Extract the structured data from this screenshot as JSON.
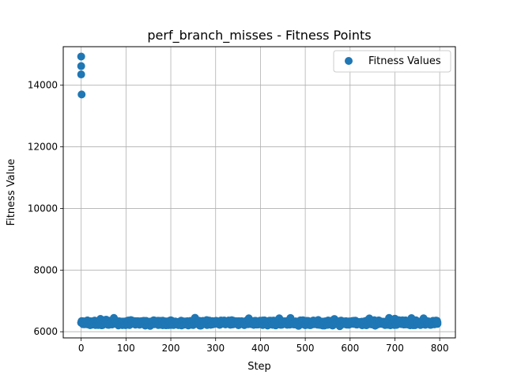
{
  "chart_data": {
    "type": "scatter",
    "title": "perf_branch_misses - Fitness Points",
    "xlabel": "Step",
    "ylabel": "Fitness Value",
    "xlim": [
      -40,
      835
    ],
    "ylim": [
      5800,
      15250
    ],
    "xticks": [
      0,
      100,
      200,
      300,
      400,
      500,
      600,
      700,
      800
    ],
    "yticks": [
      6000,
      8000,
      10000,
      12000,
      14000
    ],
    "grid": true,
    "legend": {
      "placement": "top-right",
      "entries": [
        "Fitness Values"
      ]
    },
    "series": [
      {
        "name": "Fitness Values",
        "color": "#1f77b4",
        "outliers": [
          {
            "x": 0,
            "y": 14930
          },
          {
            "x": 0,
            "y": 14620
          },
          {
            "x": 0,
            "y": 14350
          },
          {
            "x": 1,
            "y": 13700
          }
        ],
        "bulk": {
          "x_start": 0,
          "x_end": 795,
          "y_min": 6180,
          "y_max": 6460,
          "y_center": 6290
        }
      }
    ]
  }
}
